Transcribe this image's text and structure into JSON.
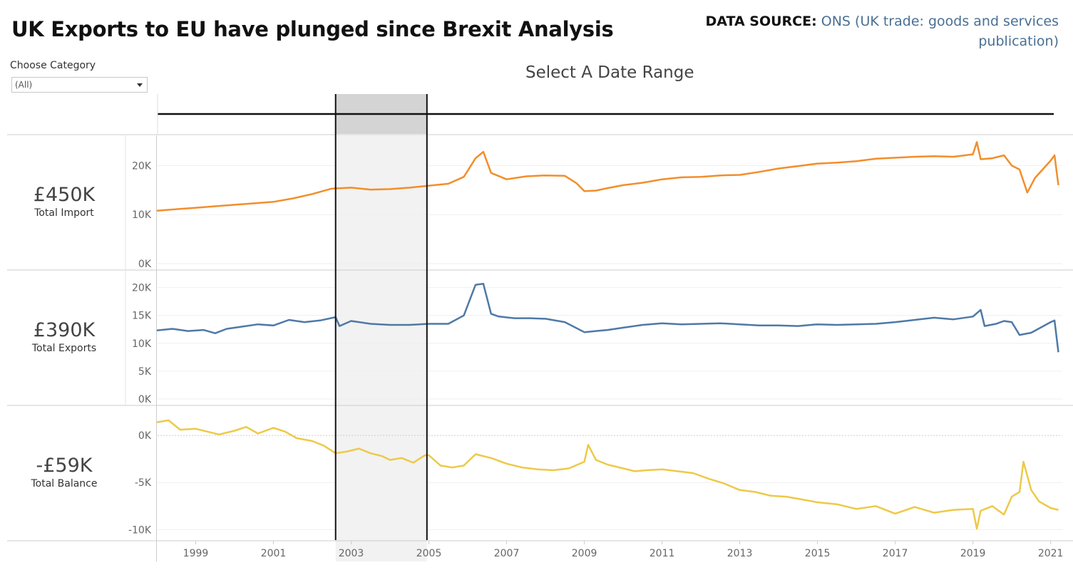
{
  "header": {
    "title": "UK Exports to EU have plunged since Brexit Analysis",
    "source_label": "DATA SOURCE:",
    "source_text": "ONS (UK trade: goods and services publication)"
  },
  "filter": {
    "label": "Choose Category",
    "selected": "(All)"
  },
  "range_selector": {
    "title": "Select A Date Range",
    "selected_start": 2002.6,
    "selected_end": 2004.95
  },
  "kpis": [
    {
      "value": "£450K",
      "label": "Total Import"
    },
    {
      "value": "£390K",
      "label": "Total Exports"
    },
    {
      "value": "-£59K",
      "label": "Total Balance"
    }
  ],
  "colors": {
    "import": "#f28e2b",
    "exports": "#4e79a7",
    "balance": "#edc948",
    "selection_fill": "#f2f2f2",
    "selection_slider": "#d4d4d4"
  },
  "chart_data": [
    {
      "type": "line",
      "name": "Total Import",
      "ylim": [
        0,
        25
      ],
      "yticks": [
        {
          "v": 0,
          "label": "0K"
        },
        {
          "v": 10,
          "label": "10K"
        },
        {
          "v": 20,
          "label": "20K"
        }
      ],
      "x": [
        1998.0,
        1998.5,
        1999.0,
        1999.5,
        2000.0,
        2000.5,
        2001.0,
        2001.5,
        2002.0,
        2002.5,
        2003.0,
        2003.5,
        2004.0,
        2004.5,
        2005.0,
        2005.5,
        2005.9,
        2006.2,
        2006.4,
        2006.6,
        2007.0,
        2007.5,
        2008.0,
        2008.5,
        2008.8,
        2009.0,
        2009.3,
        2009.6,
        2010.0,
        2010.5,
        2011.0,
        2011.5,
        2012.0,
        2012.5,
        2013.0,
        2013.5,
        2014.0,
        2014.5,
        2015.0,
        2015.5,
        2016.0,
        2016.5,
        2017.0,
        2017.5,
        2018.0,
        2018.5,
        2019.0,
        2019.1,
        2019.2,
        2019.5,
        2019.8,
        2020.0,
        2020.2,
        2020.4,
        2020.6,
        2021.0,
        2021.1,
        2021.2
      ],
      "values": [
        10.8,
        11.1,
        11.4,
        11.7,
        12.0,
        12.3,
        12.6,
        13.3,
        14.2,
        15.3,
        15.5,
        15.1,
        15.2,
        15.5,
        15.9,
        16.3,
        17.7,
        21.5,
        22.8,
        18.5,
        17.2,
        17.8,
        18.0,
        17.9,
        16.4,
        14.8,
        14.9,
        15.4,
        16.0,
        16.5,
        17.2,
        17.6,
        17.7,
        18.0,
        18.1,
        18.7,
        19.4,
        19.9,
        20.4,
        20.6,
        20.9,
        21.4,
        21.6,
        21.8,
        21.9,
        21.8,
        22.3,
        24.8,
        21.3,
        21.5,
        22.1,
        20.0,
        19.2,
        14.5,
        17.5,
        21.0,
        22.1,
        16.0
      ],
      "x_ticks": [
        1999,
        2001,
        2003,
        2005,
        2007,
        2009,
        2011,
        2013,
        2015,
        2017,
        2019,
        2021
      ]
    },
    {
      "type": "line",
      "name": "Total Exports",
      "ylim": [
        0,
        22
      ],
      "yticks": [
        {
          "v": 0,
          "label": "0K"
        },
        {
          "v": 5,
          "label": "5K"
        },
        {
          "v": 10,
          "label": "10K"
        },
        {
          "v": 15,
          "label": "15K"
        },
        {
          "v": 20,
          "label": "20K"
        }
      ],
      "x": [
        1998.0,
        1998.4,
        1998.8,
        1999.2,
        1999.5,
        1999.8,
        2000.2,
        2000.6,
        2001.0,
        2001.4,
        2001.8,
        2002.2,
        2002.6,
        2002.7,
        2003.0,
        2003.5,
        2004.0,
        2004.5,
        2005.0,
        2005.5,
        2005.9,
        2006.2,
        2006.4,
        2006.6,
        2006.8,
        2007.2,
        2007.6,
        2008.0,
        2008.5,
        2009.0,
        2009.3,
        2009.6,
        2010.0,
        2010.5,
        2011.0,
        2011.5,
        2012.0,
        2012.5,
        2013.0,
        2013.5,
        2014.0,
        2014.5,
        2015.0,
        2015.5,
        2016.0,
        2016.5,
        2017.0,
        2017.5,
        2018.0,
        2018.5,
        2019.0,
        2019.2,
        2019.3,
        2019.6,
        2019.8,
        2020.0,
        2020.2,
        2020.5,
        2021.0,
        2021.1,
        2021.2
      ],
      "values": [
        12.3,
        12.6,
        12.2,
        12.4,
        11.8,
        12.6,
        13.0,
        13.4,
        13.2,
        14.2,
        13.8,
        14.1,
        14.7,
        13.1,
        14.0,
        13.5,
        13.3,
        13.3,
        13.5,
        13.5,
        15.0,
        20.5,
        20.7,
        15.3,
        14.8,
        14.5,
        14.5,
        14.4,
        13.8,
        12.0,
        12.2,
        12.4,
        12.8,
        13.3,
        13.6,
        13.4,
        13.5,
        13.6,
        13.4,
        13.2,
        13.2,
        13.1,
        13.4,
        13.3,
        13.4,
        13.5,
        13.8,
        14.2,
        14.6,
        14.3,
        14.8,
        16.0,
        13.1,
        13.5,
        14.0,
        13.8,
        11.5,
        11.9,
        13.8,
        14.1,
        8.4
      ],
      "x_ticks": [
        1999,
        2001,
        2003,
        2005,
        2007,
        2009,
        2011,
        2013,
        2015,
        2017,
        2019,
        2021
      ]
    },
    {
      "type": "line",
      "name": "Total Balance",
      "ylim": [
        -10.5,
        2.5
      ],
      "yticks": [
        {
          "v": 0,
          "label": "0K"
        },
        {
          "v": -5,
          "label": "-5K"
        },
        {
          "v": -10,
          "label": "-10K"
        }
      ],
      "x": [
        1998.0,
        1998.3,
        1998.6,
        1999.0,
        1999.3,
        1999.6,
        2000.0,
        2000.3,
        2000.6,
        2001.0,
        2001.3,
        2001.6,
        2002.0,
        2002.3,
        2002.6,
        2002.9,
        2003.2,
        2003.5,
        2003.8,
        2004.0,
        2004.3,
        2004.6,
        2004.9,
        2005.0,
        2005.3,
        2005.6,
        2005.9,
        2006.2,
        2006.6,
        2007.0,
        2007.4,
        2007.8,
        2008.2,
        2008.6,
        2009.0,
        2009.1,
        2009.3,
        2009.6,
        2010.0,
        2010.3,
        2010.6,
        2011.0,
        2011.4,
        2011.8,
        2012.2,
        2012.6,
        2013.0,
        2013.4,
        2013.8,
        2014.2,
        2014.6,
        2015.0,
        2015.5,
        2016.0,
        2016.5,
        2017.0,
        2017.5,
        2018.0,
        2018.5,
        2019.0,
        2019.1,
        2019.2,
        2019.5,
        2019.8,
        2020.0,
        2020.2,
        2020.3,
        2020.5,
        2020.7,
        2021.0,
        2021.2
      ],
      "values": [
        1.4,
        1.6,
        0.6,
        0.7,
        0.4,
        0.1,
        0.5,
        0.9,
        0.2,
        0.8,
        0.4,
        -0.3,
        -0.6,
        -1.1,
        -1.9,
        -1.7,
        -1.4,
        -1.9,
        -2.2,
        -2.6,
        -2.4,
        -2.9,
        -2.1,
        -2.1,
        -3.2,
        -3.4,
        -3.2,
        -2.0,
        -2.4,
        -3.0,
        -3.4,
        -3.6,
        -3.7,
        -3.5,
        -2.8,
        -1.0,
        -2.6,
        -3.1,
        -3.5,
        -3.8,
        -3.7,
        -3.6,
        -3.8,
        -4.0,
        -4.6,
        -5.1,
        -5.8,
        -6.0,
        -6.4,
        -6.5,
        -6.8,
        -7.1,
        -7.3,
        -7.8,
        -7.5,
        -8.3,
        -7.6,
        -8.2,
        -7.9,
        -7.8,
        -9.9,
        -8.0,
        -7.5,
        -8.4,
        -6.5,
        -6.0,
        -2.8,
        -5.8,
        -7.0,
        -7.7,
        -7.9
      ],
      "x_ticks": [
        1999,
        2001,
        2003,
        2005,
        2007,
        2009,
        2011,
        2013,
        2015,
        2017,
        2019,
        2021
      ]
    }
  ],
  "axis": {
    "x_min": 1998.0,
    "x_max": 2021.3,
    "x_tick_labels": [
      "1999",
      "2001",
      "2003",
      "2005",
      "2007",
      "2009",
      "2011",
      "2013",
      "2015",
      "2017",
      "2019",
      "2021"
    ]
  }
}
